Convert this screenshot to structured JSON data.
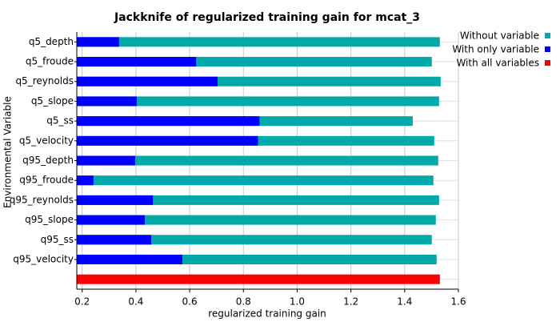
{
  "chart_data": {
    "type": "bar",
    "orientation": "horizontal",
    "title": "Jackknife of regularized training gain for mcat_3",
    "xlabel": "regularized training gain",
    "ylabel": "Environmental Variable",
    "categories": [
      "q5_depth",
      "q5_froude",
      "q5_reynolds",
      "q5_slope",
      "q5_ss",
      "q5_velocity",
      "q95_depth",
      "q95_froude",
      "q95_reynolds",
      "q95_slope",
      "q95_ss",
      "q95_velocity",
      null
    ],
    "series": [
      {
        "name": "Without variable",
        "color": "#00aaaa",
        "values": [
          1.531,
          1.501,
          1.534,
          1.528,
          1.43,
          1.51,
          1.525,
          1.507,
          1.528,
          1.516,
          1.501,
          1.519,
          null
        ]
      },
      {
        "name": "With only variable",
        "color": "#0000ff",
        "values": [
          0.337,
          0.624,
          0.704,
          0.403,
          0.86,
          0.854,
          0.397,
          0.242,
          0.463,
          0.433,
          0.457,
          0.573,
          null
        ]
      },
      {
        "name": "With all variables",
        "color": "#ff0000",
        "values": [
          null,
          null,
          null,
          null,
          null,
          null,
          null,
          null,
          null,
          null,
          null,
          null,
          1.531
        ]
      }
    ],
    "xlim": [
      0.18,
      1.6
    ],
    "xticks": [
      0.2,
      0.4,
      0.6,
      0.8,
      {
        "value": 1,
        "label": "1.0"
      },
      1.2,
      1.4,
      1.6
    ],
    "grid": true,
    "legend": "upper right"
  }
}
